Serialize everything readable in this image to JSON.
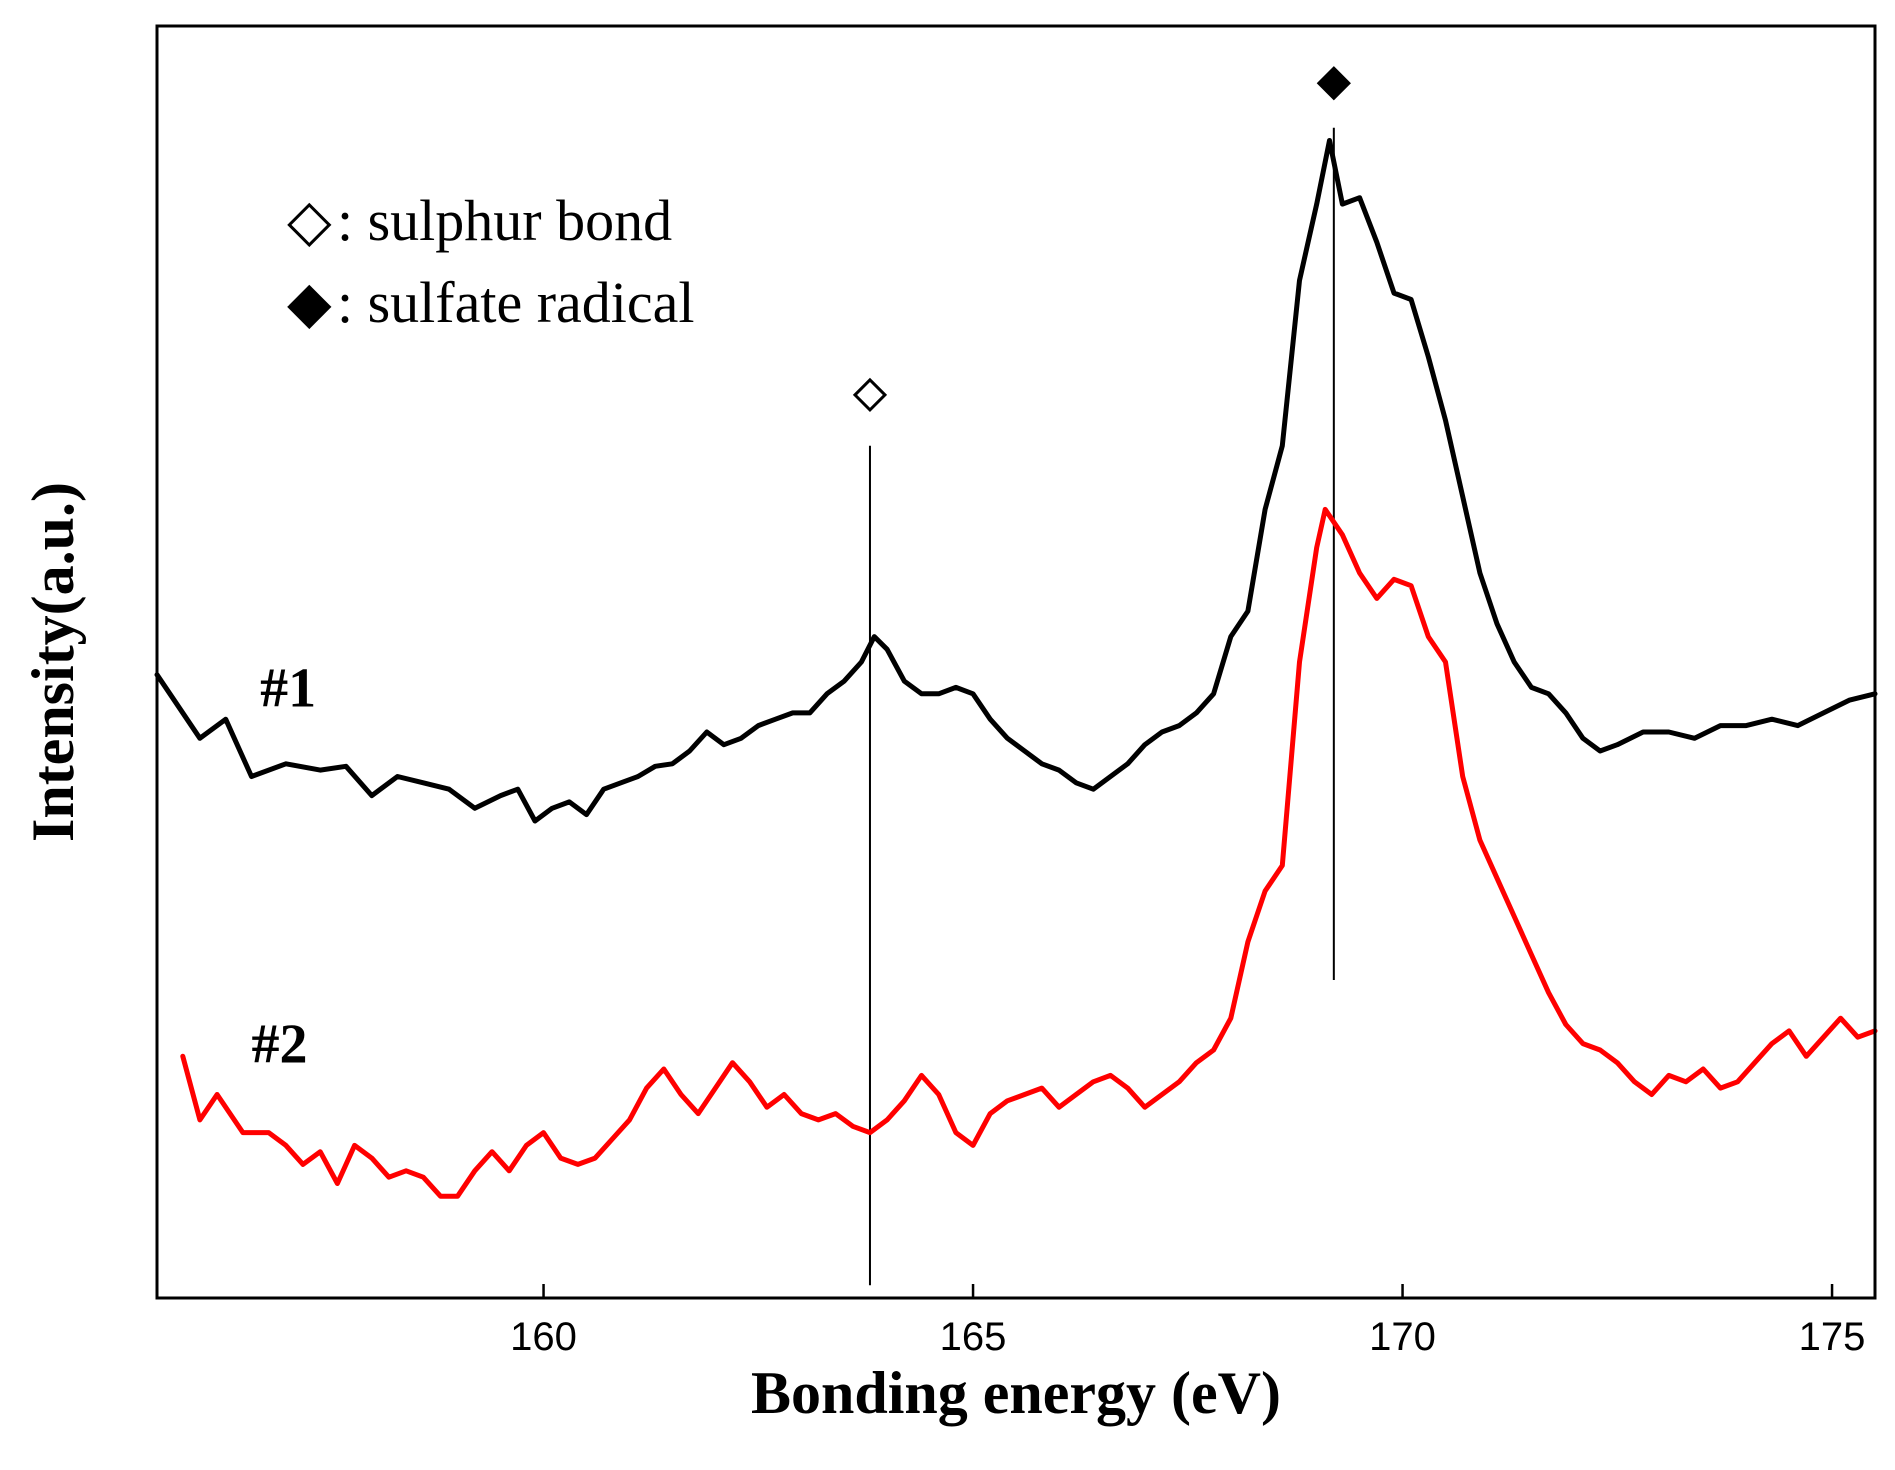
{
  "chart_data": {
    "type": "line",
    "title": "",
    "xlabel": "Bonding energy (eV)",
    "ylabel": "Intensity(a.u.)",
    "xlim": [
      155.5,
      175.5
    ],
    "ylim": [
      0,
      100
    ],
    "xticks": [
      160,
      165,
      170,
      175
    ],
    "xtick_labels": [
      "160",
      "165",
      "170",
      "175"
    ],
    "grid": false,
    "legend": {
      "placement": "top-left",
      "entries": [
        {
          "symbol": "◇",
          "label": ": sulphur bond"
        },
        {
          "symbol": "◆",
          "label": ": sulfate radical"
        }
      ]
    },
    "reference_lines": [
      {
        "name": "sulphur bond",
        "x": 163.8,
        "symbol": "◇",
        "y_top": 67,
        "y_bottom": 1,
        "symbol_y": 71
      },
      {
        "name": "sulfate radical",
        "x": 169.2,
        "symbol": "◆",
        "y_top": 92,
        "y_bottom": 25,
        "symbol_y": 95.5
      }
    ],
    "series": [
      {
        "name": "#1",
        "label": "#1",
        "color": "#000000",
        "label_x": 156.7,
        "label_y": 46.5,
        "points": [
          [
            155.5,
            49
          ],
          [
            155.7,
            47
          ],
          [
            156.0,
            44
          ],
          [
            156.3,
            45.5
          ],
          [
            156.6,
            41
          ],
          [
            157.0,
            42
          ],
          [
            157.4,
            41.5
          ],
          [
            157.7,
            41.8
          ],
          [
            158.0,
            39.5
          ],
          [
            158.3,
            41
          ],
          [
            158.6,
            40.5
          ],
          [
            158.9,
            40
          ],
          [
            159.2,
            38.5
          ],
          [
            159.5,
            39.5
          ],
          [
            159.7,
            40
          ],
          [
            159.9,
            37.5
          ],
          [
            160.1,
            38.5
          ],
          [
            160.3,
            39
          ],
          [
            160.5,
            38
          ],
          [
            160.7,
            40
          ],
          [
            160.9,
            40.5
          ],
          [
            161.1,
            41
          ],
          [
            161.3,
            41.8
          ],
          [
            161.5,
            42
          ],
          [
            161.7,
            43
          ],
          [
            161.9,
            44.5
          ],
          [
            162.1,
            43.5
          ],
          [
            162.3,
            44
          ],
          [
            162.5,
            45
          ],
          [
            162.7,
            45.5
          ],
          [
            162.9,
            46
          ],
          [
            163.1,
            46
          ],
          [
            163.3,
            47.5
          ],
          [
            163.5,
            48.5
          ],
          [
            163.7,
            50
          ],
          [
            163.85,
            52
          ],
          [
            164.0,
            51
          ],
          [
            164.2,
            48.5
          ],
          [
            164.4,
            47.5
          ],
          [
            164.6,
            47.5
          ],
          [
            164.8,
            48
          ],
          [
            165.0,
            47.5
          ],
          [
            165.2,
            45.5
          ],
          [
            165.4,
            44
          ],
          [
            165.6,
            43
          ],
          [
            165.8,
            42
          ],
          [
            166.0,
            41.5
          ],
          [
            166.2,
            40.5
          ],
          [
            166.4,
            40
          ],
          [
            166.6,
            41
          ],
          [
            166.8,
            42
          ],
          [
            167.0,
            43.5
          ],
          [
            167.2,
            44.5
          ],
          [
            167.4,
            45
          ],
          [
            167.6,
            46
          ],
          [
            167.8,
            47.5
          ],
          [
            168.0,
            52
          ],
          [
            168.2,
            54
          ],
          [
            168.4,
            62
          ],
          [
            168.6,
            67
          ],
          [
            168.8,
            80
          ],
          [
            168.9,
            83
          ],
          [
            169.0,
            86
          ],
          [
            169.15,
            91
          ],
          [
            169.3,
            86
          ],
          [
            169.5,
            86.5
          ],
          [
            169.7,
            83
          ],
          [
            169.9,
            79
          ],
          [
            170.1,
            78.5
          ],
          [
            170.3,
            74
          ],
          [
            170.5,
            69
          ],
          [
            170.7,
            63
          ],
          [
            170.9,
            57
          ],
          [
            171.1,
            53
          ],
          [
            171.3,
            50
          ],
          [
            171.5,
            48
          ],
          [
            171.7,
            47.5
          ],
          [
            171.9,
            46
          ],
          [
            172.1,
            44
          ],
          [
            172.3,
            43
          ],
          [
            172.5,
            43.5
          ],
          [
            172.8,
            44.5
          ],
          [
            173.1,
            44.5
          ],
          [
            173.4,
            44
          ],
          [
            173.7,
            45
          ],
          [
            174.0,
            45
          ],
          [
            174.3,
            45.5
          ],
          [
            174.6,
            45
          ],
          [
            174.9,
            46
          ],
          [
            175.2,
            47
          ],
          [
            175.5,
            47.5
          ]
        ]
      },
      {
        "name": "#2",
        "label": "#2",
        "color": "#ff0000",
        "label_x": 156.6,
        "label_y": 18.5,
        "points": [
          [
            155.8,
            19
          ],
          [
            156.0,
            14
          ],
          [
            156.2,
            16
          ],
          [
            156.5,
            13
          ],
          [
            156.8,
            13
          ],
          [
            157.0,
            12
          ],
          [
            157.2,
            10.5
          ],
          [
            157.4,
            11.5
          ],
          [
            157.6,
            9
          ],
          [
            157.8,
            12
          ],
          [
            158.0,
            11
          ],
          [
            158.2,
            9.5
          ],
          [
            158.4,
            10
          ],
          [
            158.6,
            9.5
          ],
          [
            158.8,
            8
          ],
          [
            159.0,
            8
          ],
          [
            159.2,
            10
          ],
          [
            159.4,
            11.5
          ],
          [
            159.6,
            10
          ],
          [
            159.8,
            12
          ],
          [
            160.0,
            13
          ],
          [
            160.2,
            11
          ],
          [
            160.4,
            10.5
          ],
          [
            160.6,
            11
          ],
          [
            160.8,
            12.5
          ],
          [
            161.0,
            14
          ],
          [
            161.2,
            16.5
          ],
          [
            161.4,
            18
          ],
          [
            161.6,
            16
          ],
          [
            161.8,
            14.5
          ],
          [
            162.0,
            16.5
          ],
          [
            162.2,
            18.5
          ],
          [
            162.4,
            17
          ],
          [
            162.6,
            15
          ],
          [
            162.8,
            16
          ],
          [
            163.0,
            14.5
          ],
          [
            163.2,
            14
          ],
          [
            163.4,
            14.5
          ],
          [
            163.6,
            13.5
          ],
          [
            163.8,
            13
          ],
          [
            164.0,
            14
          ],
          [
            164.2,
            15.5
          ],
          [
            164.4,
            17.5
          ],
          [
            164.6,
            16
          ],
          [
            164.8,
            13
          ],
          [
            165.0,
            12
          ],
          [
            165.2,
            14.5
          ],
          [
            165.4,
            15.5
          ],
          [
            165.6,
            16
          ],
          [
            165.8,
            16.5
          ],
          [
            166.0,
            15
          ],
          [
            166.2,
            16
          ],
          [
            166.4,
            17
          ],
          [
            166.6,
            17.5
          ],
          [
            166.8,
            16.5
          ],
          [
            167.0,
            15
          ],
          [
            167.2,
            16
          ],
          [
            167.4,
            17
          ],
          [
            167.6,
            18.5
          ],
          [
            167.8,
            19.5
          ],
          [
            168.0,
            22
          ],
          [
            168.2,
            28
          ],
          [
            168.4,
            32
          ],
          [
            168.6,
            34
          ],
          [
            168.8,
            50
          ],
          [
            169.0,
            59
          ],
          [
            169.1,
            62
          ],
          [
            169.3,
            60
          ],
          [
            169.5,
            57
          ],
          [
            169.7,
            55
          ],
          [
            169.9,
            56.5
          ],
          [
            170.1,
            56
          ],
          [
            170.3,
            52
          ],
          [
            170.5,
            50
          ],
          [
            170.7,
            41
          ],
          [
            170.9,
            36
          ],
          [
            171.1,
            33
          ],
          [
            171.3,
            30
          ],
          [
            171.5,
            27
          ],
          [
            171.7,
            24
          ],
          [
            171.9,
            21.5
          ],
          [
            172.1,
            20
          ],
          [
            172.3,
            19.5
          ],
          [
            172.5,
            18.5
          ],
          [
            172.7,
            17
          ],
          [
            172.9,
            16
          ],
          [
            173.1,
            17.5
          ],
          [
            173.3,
            17
          ],
          [
            173.5,
            18
          ],
          [
            173.7,
            16.5
          ],
          [
            173.9,
            17
          ],
          [
            174.1,
            18.5
          ],
          [
            174.3,
            20
          ],
          [
            174.5,
            21
          ],
          [
            174.7,
            19
          ],
          [
            174.9,
            20.5
          ],
          [
            175.1,
            22
          ],
          [
            175.3,
            20.5
          ],
          [
            175.5,
            21
          ]
        ]
      }
    ]
  }
}
